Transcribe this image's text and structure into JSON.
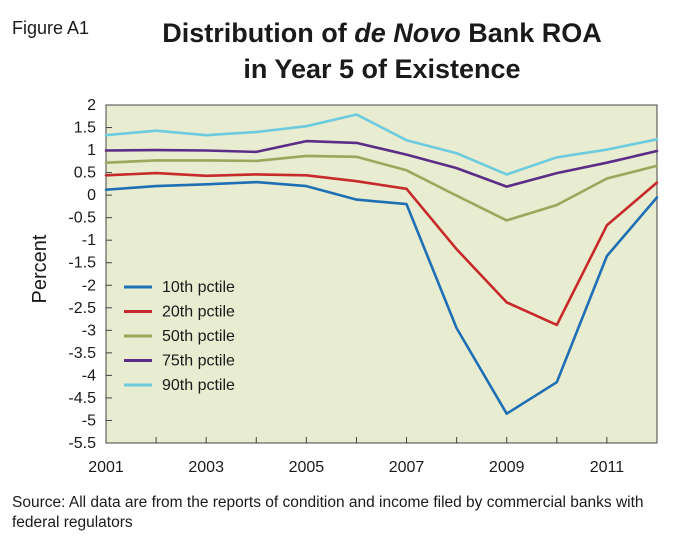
{
  "figure_label": "Figure A1",
  "title": {
    "line1_part1": "Distribution of ",
    "line1_italic": "de Novo",
    "line1_part2": " Bank ROA",
    "line2": "in Year 5 of Existence"
  },
  "source_note": "Source: All data are from the reports of condition and income filed by commercial banks with federal regulators",
  "colors": {
    "plot_background": "#e8ecd0",
    "axis": "#444444"
  },
  "chart_data": {
    "type": "line",
    "ylabel": "Percent",
    "xlabel": "",
    "xlim": [
      2001,
      2012
    ],
    "ylim": [
      -5.5,
      2
    ],
    "yticks": [
      2,
      1.5,
      1,
      0.5,
      0,
      -0.5,
      -1,
      -1.5,
      -2,
      -2.5,
      -3,
      -3.5,
      -4,
      -4.5,
      -5,
      -5.5
    ],
    "ytick_labels": [
      "2",
      "1.5",
      "1",
      "0.5",
      "0",
      "-0.5",
      "-1",
      "-1.5",
      "-2",
      "-2.5",
      "-3",
      "-3.5",
      "-4",
      "-4.5",
      "-5",
      "-5.5"
    ],
    "xticks": [
      2001,
      2003,
      2005,
      2007,
      2009,
      2011
    ],
    "xtick_labels": [
      "2001",
      "2003",
      "2005",
      "2007",
      "2009",
      "2011"
    ],
    "grid": false,
    "legend_position": "bottom-left",
    "x": [
      2001,
      2002,
      2003,
      2004,
      2005,
      2006,
      2007,
      2008,
      2009,
      2010,
      2011,
      2012
    ],
    "series": [
      {
        "name": "10th pctile",
        "color": "#1f6fb4",
        "values": [
          0.12,
          0.2,
          0.24,
          0.29,
          0.2,
          -0.1,
          -0.2,
          -2.95,
          -4.85,
          -4.15,
          -1.35,
          -0.05
        ]
      },
      {
        "name": "20th pctile",
        "color": "#c62a2a",
        "values": [
          0.44,
          0.49,
          0.43,
          0.46,
          0.44,
          0.31,
          0.14,
          -1.2,
          -2.38,
          -2.88,
          -0.67,
          0.28
        ]
      },
      {
        "name": "50th pctile",
        "color": "#99a85c",
        "values": [
          0.72,
          0.77,
          0.77,
          0.76,
          0.87,
          0.85,
          0.55,
          -0.01,
          -0.56,
          -0.22,
          0.37,
          0.65
        ]
      },
      {
        "name": "75th pctile",
        "color": "#5c2d87",
        "values": [
          0.99,
          1.0,
          0.99,
          0.96,
          1.2,
          1.16,
          0.9,
          0.6,
          0.19,
          0.49,
          0.72,
          0.98
        ]
      },
      {
        "name": "90th pctile",
        "color": "#6ccbdf",
        "values": [
          1.33,
          1.43,
          1.33,
          1.4,
          1.53,
          1.79,
          1.22,
          0.93,
          0.46,
          0.84,
          1.01,
          1.24
        ]
      }
    ]
  }
}
